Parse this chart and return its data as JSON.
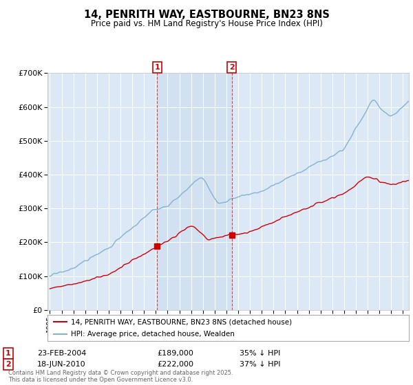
{
  "title": "14, PENRITH WAY, EASTBOURNE, BN23 8NS",
  "subtitle": "Price paid vs. HM Land Registry's House Price Index (HPI)",
  "legend_line1": "14, PENRITH WAY, EASTBOURNE, BN23 8NS (detached house)",
  "legend_line2": "HPI: Average price, detached house, Wealden",
  "red_color": "#cc0000",
  "blue_color": "#7fb3d3",
  "annotation1_date": "23-FEB-2004",
  "annotation1_price": "£189,000",
  "annotation1_pct": "35% ↓ HPI",
  "annotation2_date": "18-JUN-2010",
  "annotation2_price": "£222,000",
  "annotation2_pct": "37% ↓ HPI",
  "footer": "Contains HM Land Registry data © Crown copyright and database right 2025.\nThis data is licensed under the Open Government Licence v3.0.",
  "ylim_min": 0,
  "ylim_max": 700000,
  "background_color": "#ffffff",
  "plot_bg": "#dce8f5",
  "shade_color": "#cfe0f0",
  "grid_color": "#ffffff",
  "sale1_year": 2004.12,
  "sale2_year": 2010.46,
  "sale1_price": 189000,
  "sale2_price": 222000
}
